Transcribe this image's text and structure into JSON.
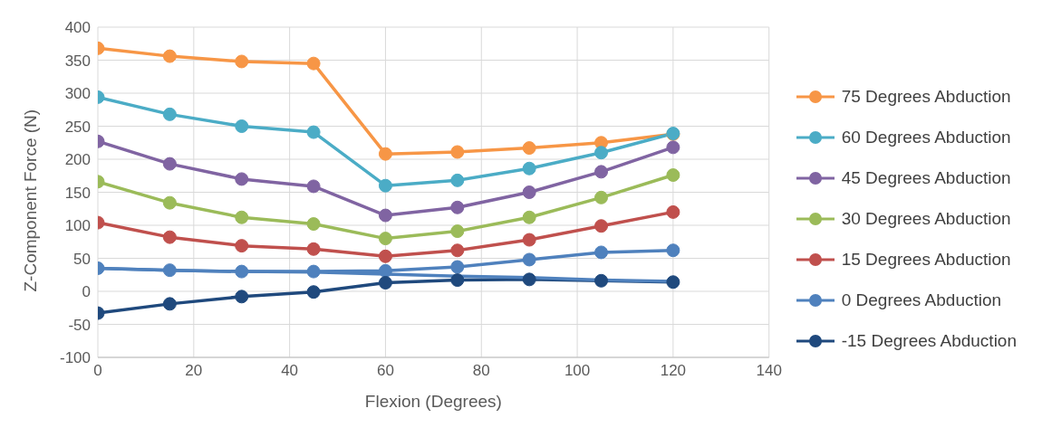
{
  "chart_data": {
    "type": "line",
    "xlabel": "Flexion (Degrees)",
    "ylabel": "Z-Component Force (N)",
    "x": [
      0,
      15,
      30,
      45,
      60,
      75,
      90,
      105,
      120
    ],
    "series": [
      {
        "name": "75 Degrees Abduction",
        "color": "#f79646",
        "values": [
          368,
          356,
          348,
          345,
          208,
          211,
          217,
          225,
          238
        ]
      },
      {
        "name": "60 Degrees Abduction",
        "color": "#4bacc6",
        "values": [
          294,
          268,
          250,
          241,
          160,
          168,
          186,
          210,
          239
        ]
      },
      {
        "name": "45 Degrees Abduction",
        "color": "#8064a2",
        "values": [
          227,
          193,
          170,
          159,
          115,
          127,
          150,
          181,
          218
        ]
      },
      {
        "name": "30 Degrees Abduction",
        "color": "#9bbb59",
        "values": [
          166,
          134,
          112,
          102,
          80,
          91,
          112,
          142,
          176
        ]
      },
      {
        "name": "15 Degrees Abduction",
        "color": "#c0504d",
        "values": [
          104,
          82,
          69,
          64,
          53,
          62,
          78,
          99,
          120
        ]
      },
      {
        "name": "0 Degrees Abduction",
        "color": "#4f81bd",
        "values": [
          35,
          32,
          30,
          30,
          31,
          37,
          48,
          59,
          62
        ]
      },
      {
        "name": "-15 Degrees Abduction",
        "color": "#1f497d",
        "values": [
          -33,
          -19,
          -8,
          -1,
          13,
          17,
          18,
          16,
          14
        ]
      },
      {
        "color": "#4f81bd",
        "marker": "none",
        "values": [
          35,
          32,
          30,
          29,
          26,
          23,
          21,
          17,
          15
        ]
      }
    ],
    "xlim": [
      0,
      140
    ],
    "xticks": [
      0,
      20,
      40,
      60,
      80,
      100,
      120,
      140
    ],
    "ylim": [
      -100,
      400
    ],
    "yticks": [
      -100,
      -50,
      0,
      50,
      100,
      150,
      200,
      250,
      300,
      350,
      400
    ],
    "grid": true,
    "legend": "right",
    "marker": "circle",
    "line_style": "solid"
  }
}
